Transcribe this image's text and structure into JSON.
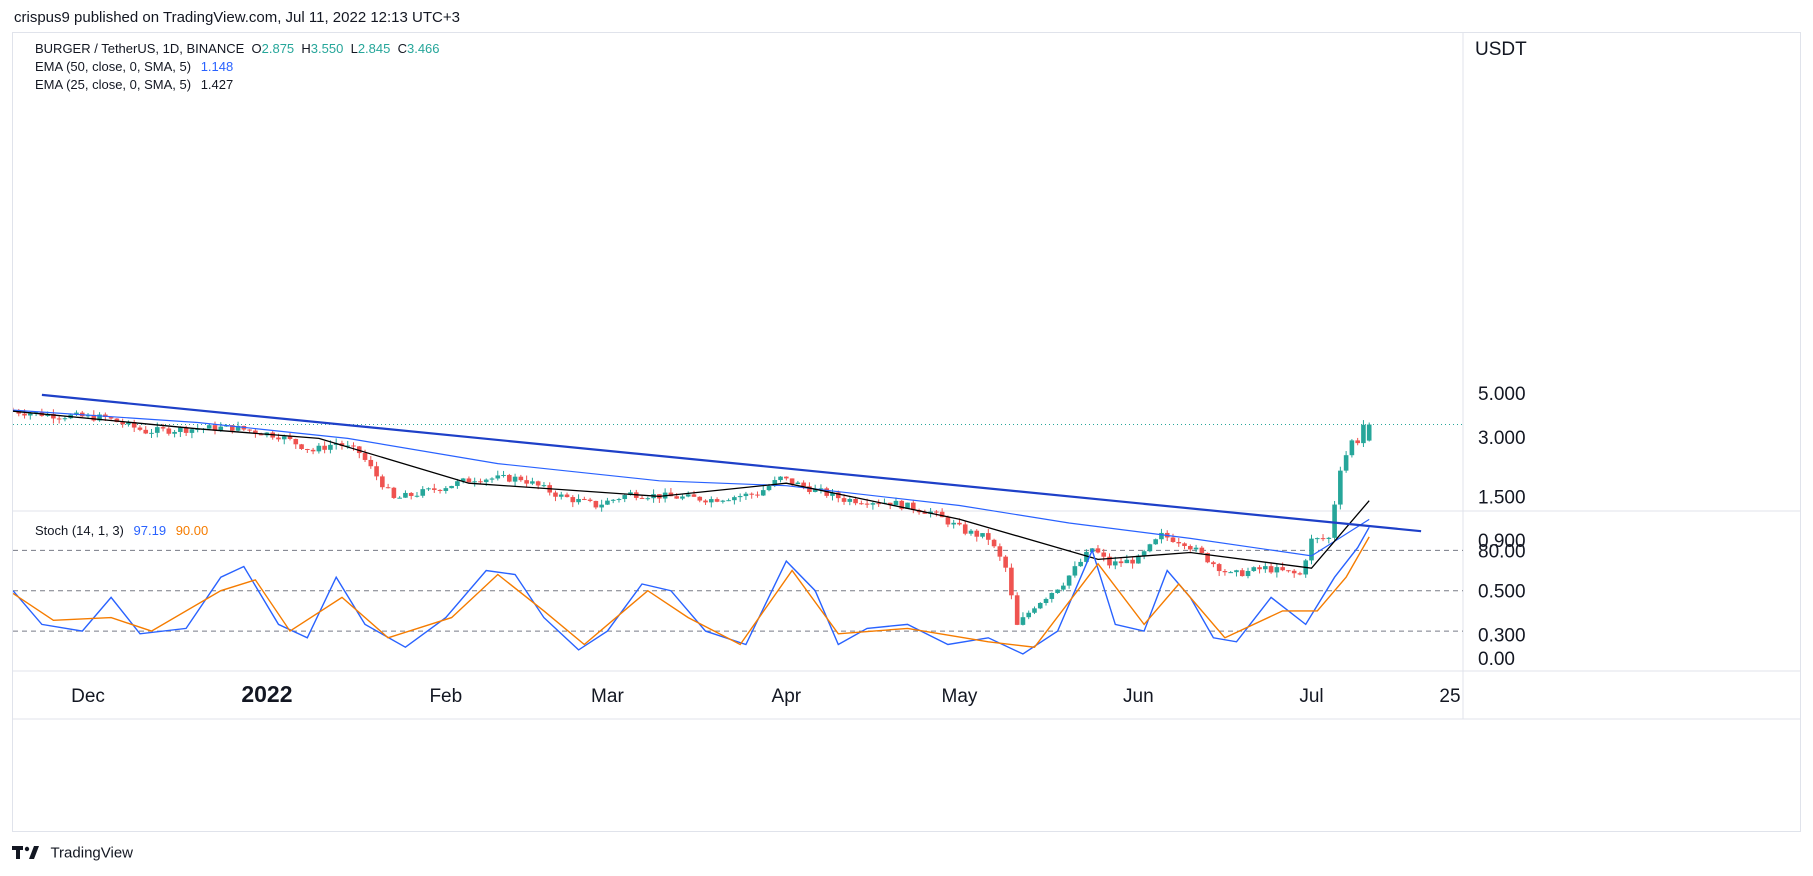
{
  "header": {
    "published_text": "crispus9 published on TradingView.com, Jul 11, 2022 12:13 UTC+3"
  },
  "legend": {
    "symbol": "BURGER / TetherUS, 1D, BINANCE",
    "open_label": "O",
    "open": "2.875",
    "high_label": "H",
    "high": "3.550",
    "low_label": "L",
    "low": "2.845",
    "close_label": "C",
    "close": "3.466",
    "ema50_label": "EMA (50, close, 0, SMA, 5)",
    "ema50_value": "1.148",
    "ema25_label": "EMA (25, close, 0, SMA, 5)",
    "ema25_value": "1.427",
    "stoch_label": "Stoch (14, 1, 3)",
    "stoch_k": "97.19",
    "stoch_d": "90.00"
  },
  "colors": {
    "up": "#26a69a",
    "down": "#ef5350",
    "ema50": "#2962ff",
    "ema25": "#000000",
    "trendline": "#1e40c8",
    "stoch_k": "#2962ff",
    "stoch_d": "#f57c00",
    "grid": "#e0e3eb",
    "dashed": "#787b86",
    "text": "#131722"
  },
  "footer": {
    "brand": "TradingView"
  },
  "chart_data": [
    {
      "type": "candlestick",
      "title": "BURGER / TetherUS, 1D, BINANCE",
      "y_unit": "USDT",
      "y_scale": "log",
      "y_ticks": [
        "5.000",
        "3.000",
        "1.500",
        "0.900",
        "0.500",
        "0.300"
      ],
      "x_ticks": [
        "Dec",
        "2022",
        "Feb",
        "Mar",
        "Apr",
        "May",
        "Jun",
        "Jul",
        "25"
      ],
      "x_range": [
        "2021-11-18",
        "2022-07-25"
      ],
      "last_close": 3.466,
      "ohlc_last": {
        "open": 2.875,
        "high": 3.55,
        "low": 2.845,
        "close": 3.466
      },
      "anchors": [
        {
          "date": "2021-11-18",
          "price": 4.08
        },
        {
          "date": "2021-11-27",
          "price": 3.85
        },
        {
          "date": "2021-12-05",
          "price": 3.75
        },
        {
          "date": "2021-12-12",
          "price": 3.2
        },
        {
          "date": "2021-12-20",
          "price": 3.3
        },
        {
          "date": "2021-12-27",
          "price": 3.35
        },
        {
          "date": "2022-01-04",
          "price": 3.05
        },
        {
          "date": "2022-01-10",
          "price": 2.55
        },
        {
          "date": "2022-01-14",
          "price": 2.8
        },
        {
          "date": "2022-01-18",
          "price": 2.5
        },
        {
          "date": "2022-01-24",
          "price": 1.45
        },
        {
          "date": "2022-01-30",
          "price": 1.6
        },
        {
          "date": "2022-02-07",
          "price": 1.85
        },
        {
          "date": "2022-02-15",
          "price": 1.85
        },
        {
          "date": "2022-02-22",
          "price": 1.5
        },
        {
          "date": "2022-02-28",
          "price": 1.35
        },
        {
          "date": "2022-03-06",
          "price": 1.55
        },
        {
          "date": "2022-03-12",
          "price": 1.5
        },
        {
          "date": "2022-03-20",
          "price": 1.45
        },
        {
          "date": "2022-03-28",
          "price": 1.55
        },
        {
          "date": "2022-04-01",
          "price": 1.85
        },
        {
          "date": "2022-04-06",
          "price": 1.65
        },
        {
          "date": "2022-04-12",
          "price": 1.45
        },
        {
          "date": "2022-04-20",
          "price": 1.4
        },
        {
          "date": "2022-04-27",
          "price": 1.25
        },
        {
          "date": "2022-05-03",
          "price": 1.0
        },
        {
          "date": "2022-05-07",
          "price": 0.92
        },
        {
          "date": "2022-05-10",
          "price": 0.65
        },
        {
          "date": "2022-05-12",
          "price": 0.33
        },
        {
          "date": "2022-05-15",
          "price": 0.42
        },
        {
          "date": "2022-05-20",
          "price": 0.55
        },
        {
          "date": "2022-05-25",
          "price": 0.82
        },
        {
          "date": "2022-05-28",
          "price": 0.68
        },
        {
          "date": "2022-06-02",
          "price": 0.72
        },
        {
          "date": "2022-06-06",
          "price": 0.95
        },
        {
          "date": "2022-06-10",
          "price": 0.88
        },
        {
          "date": "2022-06-14",
          "price": 0.72
        },
        {
          "date": "2022-06-18",
          "price": 0.6
        },
        {
          "date": "2022-06-24",
          "price": 0.65
        },
        {
          "date": "2022-06-30",
          "price": 0.6
        },
        {
          "date": "2022-07-02",
          "price": 0.9
        },
        {
          "date": "2022-07-05",
          "price": 0.92
        },
        {
          "date": "2022-07-07",
          "price": 2.1
        },
        {
          "date": "2022-07-09",
          "price": 2.85
        },
        {
          "date": "2022-07-10",
          "price": 2.875
        },
        {
          "date": "2022-07-11",
          "price": 3.466
        }
      ],
      "series": [
        {
          "name": "EMA (50, close, 0, SMA, 5)",
          "points": [
            {
              "date": "2021-11-18",
              "value": 4.1
            },
            {
              "date": "2021-12-20",
              "value": 3.55
            },
            {
              "date": "2022-01-15",
              "value": 2.95
            },
            {
              "date": "2022-02-10",
              "value": 2.2
            },
            {
              "date": "2022-03-10",
              "value": 1.8
            },
            {
              "date": "2022-04-01",
              "value": 1.7
            },
            {
              "date": "2022-05-01",
              "value": 1.35
            },
            {
              "date": "2022-05-20",
              "value": 1.1
            },
            {
              "date": "2022-06-10",
              "value": 0.92
            },
            {
              "date": "2022-07-01",
              "value": 0.75
            },
            {
              "date": "2022-07-11",
              "value": 1.148
            }
          ]
        },
        {
          "name": "EMA (25, close, 0, SMA, 5)",
          "points": [
            {
              "date": "2021-11-18",
              "value": 4.05
            },
            {
              "date": "2021-12-20",
              "value": 3.3
            },
            {
              "date": "2022-01-10",
              "value": 2.95
            },
            {
              "date": "2022-02-05",
              "value": 1.75
            },
            {
              "date": "2022-03-10",
              "value": 1.5
            },
            {
              "date": "2022-04-01",
              "value": 1.75
            },
            {
              "date": "2022-05-01",
              "value": 1.15
            },
            {
              "date": "2022-05-25",
              "value": 0.72
            },
            {
              "date": "2022-06-10",
              "value": 0.78
            },
            {
              "date": "2022-07-01",
              "value": 0.65
            },
            {
              "date": "2022-07-11",
              "value": 1.427
            }
          ]
        },
        {
          "name": "trendline",
          "points": [
            {
              "date": "2021-11-23",
              "value": 4.9
            },
            {
              "date": "2022-07-20",
              "value": 1.0
            }
          ]
        }
      ]
    },
    {
      "type": "line",
      "title": "Stoch (14, 1, 3)",
      "y_ticks": [
        "80.00",
        "0.00"
      ],
      "ylim": [
        0,
        100
      ],
      "dashed_levels": [
        80,
        50,
        20
      ],
      "series": [
        {
          "name": "%K",
          "points": [
            {
              "date": "2021-11-18",
              "value": 50
            },
            {
              "date": "2021-11-23",
              "value": 25
            },
            {
              "date": "2021-11-30",
              "value": 20
            },
            {
              "date": "2021-12-05",
              "value": 45
            },
            {
              "date": "2021-12-10",
              "value": 18
            },
            {
              "date": "2021-12-18",
              "value": 22
            },
            {
              "date": "2021-12-24",
              "value": 60
            },
            {
              "date": "2021-12-28",
              "value": 68
            },
            {
              "date": "2022-01-03",
              "value": 25
            },
            {
              "date": "2022-01-08",
              "value": 15
            },
            {
              "date": "2022-01-13",
              "value": 60
            },
            {
              "date": "2022-01-18",
              "value": 25
            },
            {
              "date": "2022-01-25",
              "value": 8
            },
            {
              "date": "2022-02-01",
              "value": 30
            },
            {
              "date": "2022-02-08",
              "value": 65
            },
            {
              "date": "2022-02-13",
              "value": 62
            },
            {
              "date": "2022-02-18",
              "value": 30
            },
            {
              "date": "2022-02-24",
              "value": 6
            },
            {
              "date": "2022-03-01",
              "value": 20
            },
            {
              "date": "2022-03-07",
              "value": 55
            },
            {
              "date": "2022-03-12",
              "value": 50
            },
            {
              "date": "2022-03-18",
              "value": 20
            },
            {
              "date": "2022-03-25",
              "value": 10
            },
            {
              "date": "2022-04-01",
              "value": 72
            },
            {
              "date": "2022-04-06",
              "value": 50
            },
            {
              "date": "2022-04-10",
              "value": 10
            },
            {
              "date": "2022-04-15",
              "value": 22
            },
            {
              "date": "2022-04-22",
              "value": 25
            },
            {
              "date": "2022-04-29",
              "value": 10
            },
            {
              "date": "2022-05-06",
              "value": 15
            },
            {
              "date": "2022-05-12",
              "value": 3
            },
            {
              "date": "2022-05-18",
              "value": 20
            },
            {
              "date": "2022-05-24",
              "value": 80
            },
            {
              "date": "2022-05-28",
              "value": 25
            },
            {
              "date": "2022-06-02",
              "value": 20
            },
            {
              "date": "2022-06-06",
              "value": 65
            },
            {
              "date": "2022-06-10",
              "value": 45
            },
            {
              "date": "2022-06-14",
              "value": 15
            },
            {
              "date": "2022-06-18",
              "value": 12
            },
            {
              "date": "2022-06-24",
              "value": 45
            },
            {
              "date": "2022-06-30",
              "value": 25
            },
            {
              "date": "2022-07-05",
              "value": 60
            },
            {
              "date": "2022-07-09",
              "value": 82
            },
            {
              "date": "2022-07-11",
              "value": 97.19
            }
          ]
        },
        {
          "name": "%D",
          "points": [
            {
              "date": "2021-11-18",
              "value": 48
            },
            {
              "date": "2021-11-25",
              "value": 28
            },
            {
              "date": "2021-12-05",
              "value": 30
            },
            {
              "date": "2021-12-12",
              "value": 20
            },
            {
              "date": "2021-12-24",
              "value": 50
            },
            {
              "date": "2021-12-30",
              "value": 58
            },
            {
              "date": "2022-01-05",
              "value": 20
            },
            {
              "date": "2022-01-14",
              "value": 45
            },
            {
              "date": "2022-01-22",
              "value": 15
            },
            {
              "date": "2022-02-02",
              "value": 30
            },
            {
              "date": "2022-02-10",
              "value": 62
            },
            {
              "date": "2022-02-18",
              "value": 35
            },
            {
              "date": "2022-02-25",
              "value": 10
            },
            {
              "date": "2022-03-08",
              "value": 50
            },
            {
              "date": "2022-03-15",
              "value": 30
            },
            {
              "date": "2022-03-24",
              "value": 10
            },
            {
              "date": "2022-04-02",
              "value": 65
            },
            {
              "date": "2022-04-10",
              "value": 18
            },
            {
              "date": "2022-04-22",
              "value": 22
            },
            {
              "date": "2022-05-06",
              "value": 12
            },
            {
              "date": "2022-05-14",
              "value": 8
            },
            {
              "date": "2022-05-25",
              "value": 70
            },
            {
              "date": "2022-06-02",
              "value": 25
            },
            {
              "date": "2022-06-08",
              "value": 55
            },
            {
              "date": "2022-06-16",
              "value": 15
            },
            {
              "date": "2022-06-26",
              "value": 35
            },
            {
              "date": "2022-07-02",
              "value": 35
            },
            {
              "date": "2022-07-07",
              "value": 60
            },
            {
              "date": "2022-07-11",
              "value": 90.0
            }
          ]
        }
      ]
    }
  ]
}
